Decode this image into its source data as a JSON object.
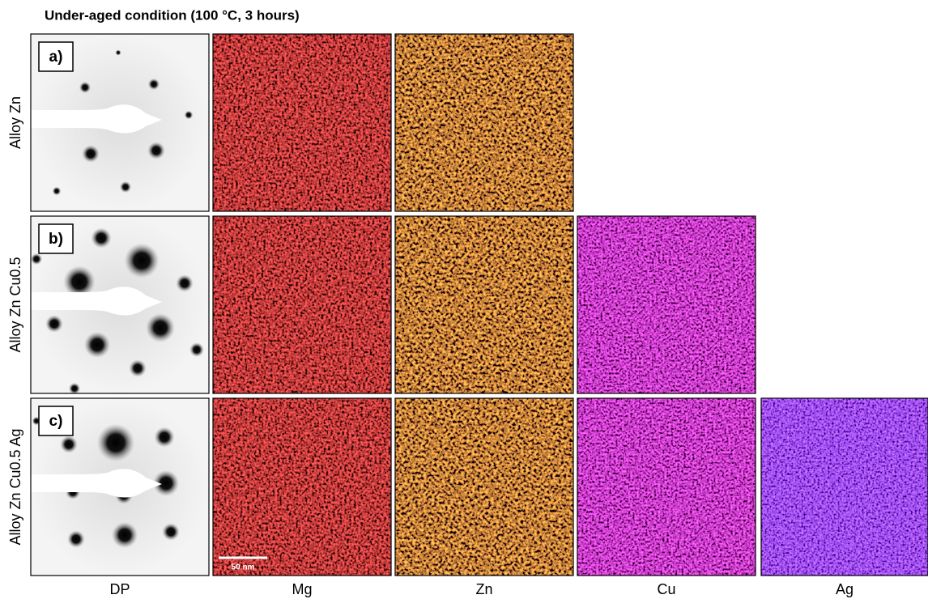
{
  "title": "Under-aged condition (100 °C, 3 hours)",
  "rows": [
    {
      "label": "Alloy Zn",
      "panel": "a)"
    },
    {
      "label": "Alloy Zn Cu0.5",
      "panel": "b)"
    },
    {
      "label": "Alloy Zn Cu0.5 Ag",
      "panel": "c)"
    }
  ],
  "columns": [
    "DP",
    "Mg",
    "Zn",
    "Cu",
    "Ag"
  ],
  "scale_bar": "50 nm"
}
